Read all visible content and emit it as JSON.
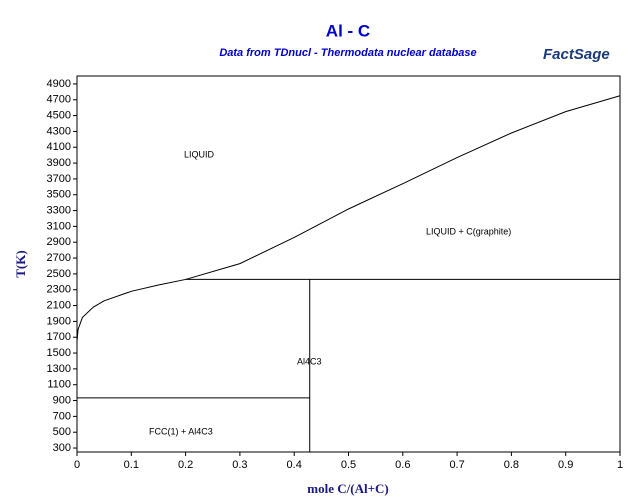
{
  "chart_data": {
    "type": "line",
    "title": "Al - C",
    "subtitle": "Data from TDnucl - Thermodata nuclear database",
    "logo": "FactSage",
    "x_label": "mole C/(Al+C)",
    "y_label": "T(K)",
    "xlim": [
      0,
      1
    ],
    "ylim": [
      250,
      5000
    ],
    "xticks": [
      0,
      0.1,
      0.2,
      0.3,
      0.4,
      0.5,
      0.6,
      0.7,
      0.8,
      0.9,
      1
    ],
    "yticks": [
      300,
      500,
      700,
      900,
      1100,
      1300,
      1500,
      1700,
      1900,
      2100,
      2300,
      2500,
      2700,
      2900,
      3100,
      3300,
      3500,
      3700,
      3900,
      4100,
      4300,
      4500,
      4700,
      4900
    ],
    "annotations": [
      "LIQUID",
      "LIQUID + C(graphite)",
      "Al4C3",
      "FCC(1) + Al4C3"
    ],
    "series": [
      {
        "color": "#000000",
        "x": [
          0,
          0.002,
          0.01,
          0.03,
          0.05,
          0.1,
          0.15,
          0.2,
          0.3,
          0.4,
          0.5,
          0.6,
          0.7,
          0.8,
          0.9,
          1
        ],
        "values": [
          1650,
          1800,
          1950,
          2080,
          2160,
          2280,
          2360,
          2430,
          2630,
          2960,
          3320,
          3640,
          3970,
          4280,
          4550,
          4750
        ]
      },
      {
        "color": "#000000",
        "x": [
          0.2,
          1
        ],
        "values": [
          2430,
          2430
        ]
      },
      {
        "color": "#000000",
        "x": [
          0.4286,
          0.4286
        ],
        "values": [
          250,
          2430
        ]
      },
      {
        "color": "#000000",
        "x": [
          0,
          0.4286
        ],
        "values": [
          933,
          933
        ]
      }
    ]
  }
}
